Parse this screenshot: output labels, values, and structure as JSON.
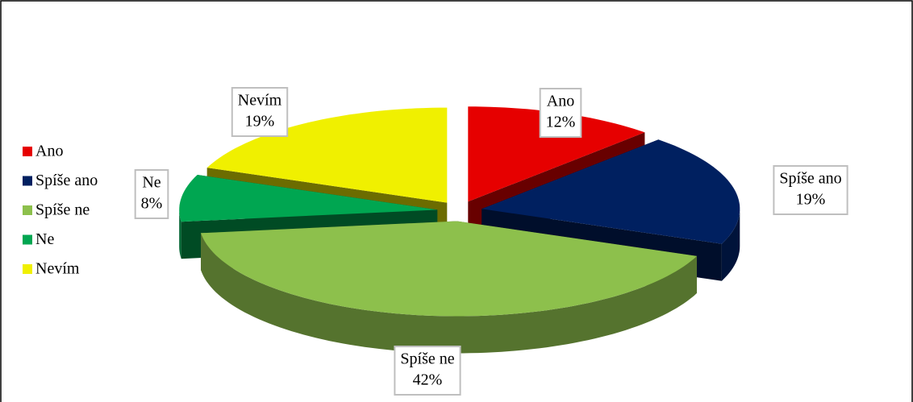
{
  "chart_data": {
    "type": "pie3d",
    "categories": [
      "Ano",
      "Spíše ano",
      "Spíše ne",
      "Ne",
      "Nevím"
    ],
    "values": [
      12,
      19,
      42,
      8,
      19
    ],
    "value_labels": [
      "12%",
      "19%",
      "42%",
      "8%",
      "19%"
    ],
    "colors": [
      "#e60000",
      "#002060",
      "#8dc04c",
      "#00a651",
      "#f0f000"
    ],
    "legend": "left"
  }
}
